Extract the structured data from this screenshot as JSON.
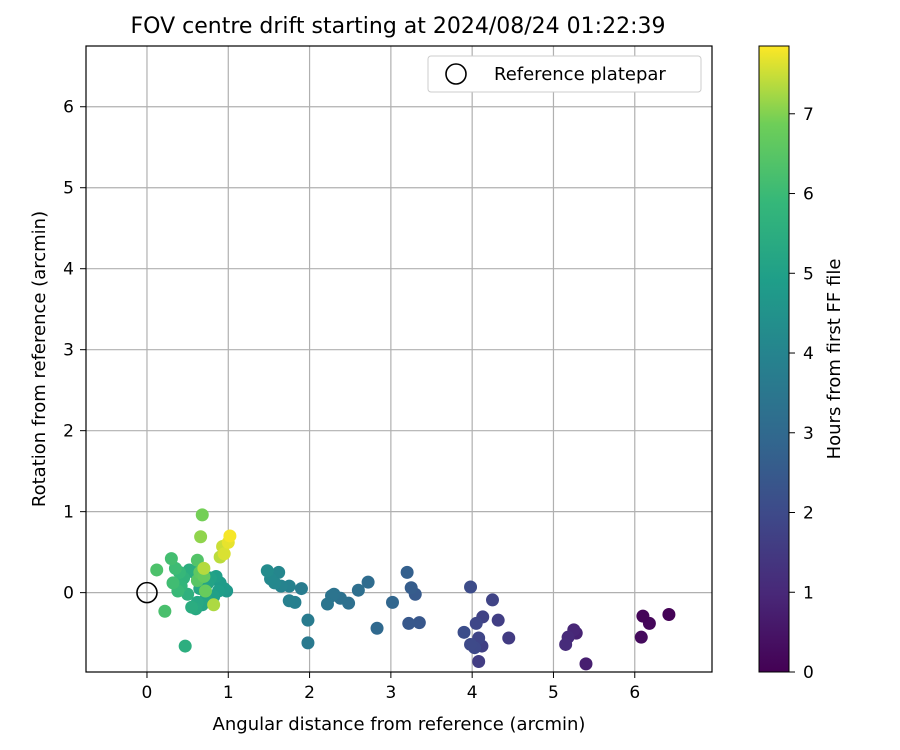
{
  "chart_data": {
    "type": "scatter",
    "title": "FOV centre drift starting at 2024/08/24 01:22:39",
    "xlabel": "Angular distance from reference (arcmin)",
    "ylabel": "Rotation from reference (arcmin)",
    "xlim": [
      -0.75,
      6.95
    ],
    "ylim": [
      -0.98,
      6.75
    ],
    "xticks": [
      "0",
      "1",
      "2",
      "3",
      "4",
      "5",
      "6"
    ],
    "yticks": [
      "0",
      "1",
      "2",
      "3",
      "4",
      "5",
      "6"
    ],
    "grid": true,
    "legend": {
      "placement": "top-right",
      "entries": [
        "Reference platepar"
      ]
    },
    "reference_point": {
      "x": 0,
      "y": 0
    },
    "colorbar": {
      "label": "Hours from first FF file",
      "range": [
        0,
        7.85
      ],
      "ticks": [
        "0",
        "1",
        "2",
        "3",
        "4",
        "5",
        "6",
        "7"
      ],
      "colormap": "viridis"
    },
    "series": [
      {
        "points": [
          {
            "x": 6.42,
            "y": -0.27,
            "c": 0.05
          },
          {
            "x": 6.18,
            "y": -0.38,
            "c": 0.15
          },
          {
            "x": 6.1,
            "y": -0.29,
            "c": 0.1
          },
          {
            "x": 6.08,
            "y": -0.55,
            "c": 0.25
          },
          {
            "x": 5.4,
            "y": -0.88,
            "c": 0.75
          },
          {
            "x": 5.28,
            "y": -0.5,
            "c": 0.85
          },
          {
            "x": 5.25,
            "y": -0.46,
            "c": 0.95
          },
          {
            "x": 5.18,
            "y": -0.55,
            "c": 1.05
          },
          {
            "x": 5.15,
            "y": -0.64,
            "c": 1.1
          },
          {
            "x": 4.45,
            "y": -0.56,
            "c": 1.55
          },
          {
            "x": 4.32,
            "y": -0.34,
            "c": 1.65
          },
          {
            "x": 4.25,
            "y": -0.09,
            "c": 1.8
          },
          {
            "x": 4.13,
            "y": -0.3,
            "c": 1.75
          },
          {
            "x": 4.12,
            "y": -0.66,
            "c": 1.7
          },
          {
            "x": 4.08,
            "y": -0.56,
            "c": 1.85
          },
          {
            "x": 4.08,
            "y": -0.85,
            "c": 1.6
          },
          {
            "x": 4.05,
            "y": -0.38,
            "c": 1.9
          },
          {
            "x": 4.03,
            "y": -0.68,
            "c": 1.95
          },
          {
            "x": 3.98,
            "y": 0.07,
            "c": 2.05
          },
          {
            "x": 3.98,
            "y": -0.64,
            "c": 2.0
          },
          {
            "x": 3.9,
            "y": -0.49,
            "c": 2.1
          },
          {
            "x": 3.35,
            "y": -0.37,
            "c": 2.4
          },
          {
            "x": 3.3,
            "y": -0.02,
            "c": 2.5
          },
          {
            "x": 3.25,
            "y": 0.06,
            "c": 2.6
          },
          {
            "x": 3.22,
            "y": -0.38,
            "c": 2.45
          },
          {
            "x": 3.2,
            "y": 0.25,
            "c": 2.7
          },
          {
            "x": 3.02,
            "y": -0.12,
            "c": 2.9
          },
          {
            "x": 2.83,
            "y": -0.44,
            "c": 3.0
          },
          {
            "x": 2.72,
            "y": 0.13,
            "c": 3.1
          },
          {
            "x": 2.6,
            "y": 0.03,
            "c": 3.2
          },
          {
            "x": 2.48,
            "y": -0.13,
            "c": 3.25
          },
          {
            "x": 2.38,
            "y": -0.07,
            "c": 3.3
          },
          {
            "x": 2.3,
            "y": -0.02,
            "c": 3.35
          },
          {
            "x": 2.27,
            "y": -0.04,
            "c": 3.4
          },
          {
            "x": 2.22,
            "y": -0.14,
            "c": 3.45
          },
          {
            "x": 1.98,
            "y": -0.62,
            "c": 3.6
          },
          {
            "x": 1.98,
            "y": -0.34,
            "c": 3.65
          },
          {
            "x": 1.9,
            "y": 0.05,
            "c": 3.7
          },
          {
            "x": 1.82,
            "y": -0.12,
            "c": 3.8
          },
          {
            "x": 1.75,
            "y": -0.1,
            "c": 3.85
          },
          {
            "x": 1.75,
            "y": 0.08,
            "c": 3.9
          },
          {
            "x": 1.65,
            "y": 0.08,
            "c": 3.95
          },
          {
            "x": 1.62,
            "y": 0.25,
            "c": 4.05
          },
          {
            "x": 1.57,
            "y": 0.12,
            "c": 4.1
          },
          {
            "x": 1.52,
            "y": 0.17,
            "c": 4.15
          },
          {
            "x": 1.48,
            "y": 0.27,
            "c": 4.25
          },
          {
            "x": 0.98,
            "y": 0.02,
            "c": 4.7
          },
          {
            "x": 0.95,
            "y": 0.05,
            "c": 4.8
          },
          {
            "x": 0.9,
            "y": 0.12,
            "c": 4.85
          },
          {
            "x": 0.88,
            "y": 0.02,
            "c": 4.9
          },
          {
            "x": 0.85,
            "y": 0.2,
            "c": 4.95
          },
          {
            "x": 0.82,
            "y": -0.05,
            "c": 5.0
          },
          {
            "x": 0.78,
            "y": 0.18,
            "c": 5.05
          },
          {
            "x": 0.75,
            "y": 0.12,
            "c": 5.1
          },
          {
            "x": 0.72,
            "y": -0.08,
            "c": 5.15
          },
          {
            "x": 0.68,
            "y": -0.15,
            "c": 5.2
          },
          {
            "x": 0.65,
            "y": 0.05,
            "c": 5.25
          },
          {
            "x": 0.62,
            "y": -0.12,
            "c": 5.3
          },
          {
            "x": 0.6,
            "y": -0.2,
            "c": 5.35
          },
          {
            "x": 0.58,
            "y": 0.25,
            "c": 5.4
          },
          {
            "x": 0.55,
            "y": -0.18,
            "c": 5.45
          },
          {
            "x": 0.52,
            "y": 0.28,
            "c": 5.5
          },
          {
            "x": 0.5,
            "y": -0.02,
            "c": 5.6
          },
          {
            "x": 0.47,
            "y": -0.66,
            "c": 5.55
          },
          {
            "x": 0.45,
            "y": 0.18,
            "c": 5.7
          },
          {
            "x": 0.42,
            "y": 0.08,
            "c": 5.8
          },
          {
            "x": 0.4,
            "y": 0.25,
            "c": 5.9
          },
          {
            "x": 0.38,
            "y": 0.02,
            "c": 5.95
          },
          {
            "x": 0.35,
            "y": 0.3,
            "c": 6.05
          },
          {
            "x": 0.32,
            "y": 0.12,
            "c": 6.1
          },
          {
            "x": 0.3,
            "y": 0.42,
            "c": 6.15
          },
          {
            "x": 0.22,
            "y": -0.23,
            "c": 6.25
          },
          {
            "x": 0.12,
            "y": 0.28,
            "c": 6.3
          },
          {
            "x": 0.62,
            "y": 0.4,
            "c": 6.4
          },
          {
            "x": 0.62,
            "y": 0.15,
            "c": 6.5
          },
          {
            "x": 0.65,
            "y": 0.25,
            "c": 6.6
          },
          {
            "x": 0.7,
            "y": 0.2,
            "c": 6.7
          },
          {
            "x": 0.72,
            "y": 0.02,
            "c": 6.75
          },
          {
            "x": 0.68,
            "y": 0.96,
            "c": 6.9
          },
          {
            "x": 0.66,
            "y": 0.69,
            "c": 7.1
          },
          {
            "x": 0.82,
            "y": -0.15,
            "c": 7.3
          },
          {
            "x": 0.7,
            "y": 0.3,
            "c": 7.35
          },
          {
            "x": 0.9,
            "y": 0.44,
            "c": 7.4
          },
          {
            "x": 0.93,
            "y": 0.57,
            "c": 7.5
          },
          {
            "x": 0.95,
            "y": 0.48,
            "c": 7.6
          },
          {
            "x": 1.0,
            "y": 0.62,
            "c": 7.7
          },
          {
            "x": 1.02,
            "y": 0.7,
            "c": 7.8
          }
        ]
      }
    ]
  }
}
